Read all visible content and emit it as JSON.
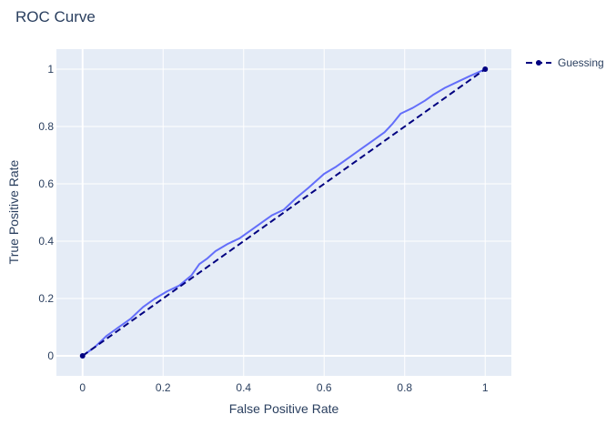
{
  "chart_data": {
    "type": "line",
    "title": "ROC Curve",
    "xlabel": "False Positive Rate",
    "ylabel": "True Positive Rate",
    "xlim": [
      -0.065,
      1.065
    ],
    "ylim": [
      -0.07,
      1.07
    ],
    "x_ticks": [
      0,
      0.2,
      0.4,
      0.6,
      0.8,
      1
    ],
    "y_ticks": [
      0,
      0.2,
      0.4,
      0.6,
      0.8,
      1
    ],
    "x_tick_labels": [
      "0",
      "0.2",
      "0.4",
      "0.6",
      "0.8",
      "1"
    ],
    "y_tick_labels": [
      "0",
      "0.2",
      "0.4",
      "0.6",
      "0.8",
      "1"
    ],
    "grid": true,
    "legend_position": "top-right",
    "series": [
      {
        "color": "#636efa",
        "dash": "solid",
        "markers": false,
        "x": [
          0,
          0.03,
          0.06,
          0.09,
          0.12,
          0.15,
          0.18,
          0.21,
          0.24,
          0.27,
          0.29,
          0.31,
          0.33,
          0.36,
          0.39,
          0.42,
          0.45,
          0.47,
          0.5,
          0.53,
          0.56,
          0.6,
          0.63,
          0.66,
          0.69,
          0.72,
          0.75,
          0.77,
          0.79,
          0.82,
          0.85,
          0.87,
          0.9,
          0.93,
          0.96,
          1.0
        ],
        "y": [
          0,
          0.03,
          0.07,
          0.1,
          0.13,
          0.17,
          0.2,
          0.225,
          0.245,
          0.28,
          0.32,
          0.34,
          0.365,
          0.39,
          0.41,
          0.44,
          0.47,
          0.49,
          0.51,
          0.55,
          0.585,
          0.635,
          0.66,
          0.69,
          0.72,
          0.75,
          0.78,
          0.81,
          0.845,
          0.865,
          0.89,
          0.91,
          0.935,
          0.955,
          0.975,
          1.0
        ]
      },
      {
        "name": "Guessing",
        "color": "#000080",
        "dash": "dash",
        "markers": true,
        "x": [
          0,
          1
        ],
        "y": [
          0,
          1
        ]
      }
    ]
  }
}
